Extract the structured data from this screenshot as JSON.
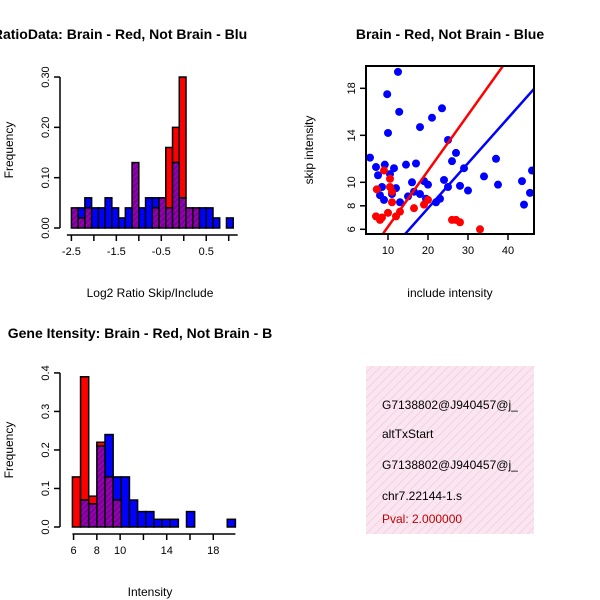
{
  "colors": {
    "brain": "#ff0000",
    "not_brain": "#0000ff",
    "overlap": "#8b008b",
    "info_bg": "#f9dfee"
  },
  "chart_data": [
    {
      "type": "bar",
      "title": "RatioData: Brain - Red, Not Brain - Blu",
      "xlabel": "Log2 Ratio Skip/Include",
      "ylabel": "Frequency",
      "xlim": [
        -2.6,
        1.2
      ],
      "ylim": [
        0,
        0.31
      ],
      "xticks": [
        -2.5,
        -1.5,
        -0.5,
        0.5
      ],
      "xtick_labels": [
        "-2.5",
        "-1.5",
        "-0.5",
        "0.5"
      ],
      "x_minor_ticks": [
        -2.0,
        -1.0,
        0.0,
        1.0
      ],
      "yticks": [
        0,
        0.1,
        0.2,
        0.3
      ],
      "ytick_labels": [
        "0.00",
        "0.10",
        "0.20",
        "0.30"
      ],
      "bin_width": 0.15,
      "bin_starts": [
        -2.5,
        -2.35,
        -2.2,
        -2.05,
        -1.9,
        -1.75,
        -1.6,
        -1.45,
        -1.3,
        -1.15,
        -1.0,
        -0.85,
        -0.7,
        -0.55,
        -0.4,
        -0.25,
        -0.1,
        0.05,
        0.2,
        0.35,
        0.5,
        0.65,
        0.8,
        0.95
      ],
      "series": [
        {
          "name": "Brain",
          "values": [
            0.04,
            0.02,
            0.04,
            0,
            0,
            0,
            0,
            0,
            0,
            0.13,
            0,
            0,
            0.04,
            0.06,
            0.16,
            0.2,
            0.3,
            0.04,
            0.04,
            0,
            0,
            0,
            0,
            0
          ]
        },
        {
          "name": "Not Brain",
          "values": [
            0.04,
            0.04,
            0.06,
            0.04,
            0.04,
            0.06,
            0.04,
            0.02,
            0.04,
            0.13,
            0.04,
            0.06,
            0.06,
            0.06,
            0.04,
            0.13,
            0.06,
            0.04,
            0.04,
            0.04,
            0.04,
            0.02,
            0,
            0.02
          ]
        }
      ]
    },
    {
      "type": "scatter",
      "title": "Brain - Red, Not Brain - Blue",
      "xlabel": "include intensity",
      "ylabel": "skip intensity",
      "xlim": [
        4.5,
        46.5
      ],
      "ylim": [
        5.6,
        19.9
      ],
      "xticks": [
        10,
        20,
        30,
        40
      ],
      "yticks": [
        6,
        8,
        10,
        14,
        18
      ],
      "series": [
        {
          "name": "Not Brain",
          "points": [
            [
              5.5,
              12.1
            ],
            [
              7,
              11.3
            ],
            [
              7.5,
              10.6
            ],
            [
              8,
              8.9
            ],
            [
              8.5,
              9.6
            ],
            [
              9,
              8.5
            ],
            [
              9.2,
              11.5
            ],
            [
              9.8,
              17.5
            ],
            [
              10,
              14.2
            ],
            [
              10.5,
              10.7
            ],
            [
              11,
              9
            ],
            [
              11.5,
              11.2
            ],
            [
              12,
              9.5
            ],
            [
              12.5,
              19.4
            ],
            [
              12.8,
              16
            ],
            [
              13,
              8.3
            ],
            [
              14.5,
              11.5
            ],
            [
              15,
              8.8
            ],
            [
              16,
              10
            ],
            [
              16.5,
              9.2
            ],
            [
              17,
              11.6
            ],
            [
              18,
              14.7
            ],
            [
              18,
              9
            ],
            [
              19,
              10.1
            ],
            [
              19.5,
              8.6
            ],
            [
              20,
              9.8
            ],
            [
              21,
              15.5
            ],
            [
              22,
              8.3
            ],
            [
              23,
              8.6
            ],
            [
              23.5,
              16.3
            ],
            [
              24,
              10.2
            ],
            [
              25,
              13.6
            ],
            [
              25,
              9.6
            ],
            [
              26,
              11.8
            ],
            [
              27,
              12.5
            ],
            [
              28,
              9.7
            ],
            [
              29,
              11.2
            ],
            [
              30,
              9.3
            ],
            [
              34,
              10.5
            ],
            [
              37,
              12
            ],
            [
              37.5,
              9.8
            ],
            [
              43.5,
              10.1
            ],
            [
              44,
              8.1
            ],
            [
              45.5,
              9.1
            ],
            [
              46,
              11
            ]
          ]
        },
        {
          "name": "Brain",
          "points": [
            [
              7,
              7.1
            ],
            [
              7.2,
              9.4
            ],
            [
              8,
              6.8
            ],
            [
              8.5,
              7
            ],
            [
              9,
              11
            ],
            [
              10,
              7.4
            ],
            [
              10.5,
              9.6
            ],
            [
              10.5,
              10.3
            ],
            [
              11,
              8.3
            ],
            [
              11,
              9.2
            ],
            [
              12,
              7.1
            ],
            [
              13,
              7.5
            ],
            [
              16.5,
              7.8
            ],
            [
              19,
              8.1
            ],
            [
              20,
              8.5
            ],
            [
              26,
              6.8
            ],
            [
              27,
              6.8
            ],
            [
              28,
              6.6
            ],
            [
              33,
              6
            ]
          ]
        }
      ],
      "fit_lines": [
        {
          "name": "Brain fit",
          "from": [
            4.5,
            3.6
          ],
          "to": [
            46.5,
            23.6
          ]
        },
        {
          "name": "Not Brain fit",
          "from": [
            4.5,
            1.85
          ],
          "to": [
            46.5,
            17.95
          ]
        }
      ]
    },
    {
      "type": "bar",
      "title": "Gene Itensity: Brain - Red, Not Brain - B",
      "xlabel": "Intensity",
      "ylabel": "Frequency",
      "xlim": [
        5.9,
        19.9
      ],
      "ylim": [
        0,
        0.405
      ],
      "xticks": [
        6,
        8,
        10,
        14,
        18
      ],
      "xtick_labels": [
        "6",
        "8",
        "10",
        "14",
        "18"
      ],
      "x_minor_ticks": [
        12,
        16
      ],
      "yticks": [
        0,
        0.1,
        0.2,
        0.3,
        0.4
      ],
      "ytick_labels": [
        "0.0",
        "0.1",
        "0.2",
        "0.3",
        "0.4"
      ],
      "bin_width": 0.7,
      "bin_starts": [
        5.9,
        6.6,
        7.3,
        8.0,
        8.7,
        9.4,
        10.1,
        10.8,
        11.5,
        12.2,
        12.9,
        13.6,
        14.3,
        15.0,
        15.7,
        16.4,
        17.1,
        17.8,
        18.5,
        19.2
      ],
      "series": [
        {
          "name": "Brain",
          "values": [
            0.13,
            0.39,
            0.08,
            0.22,
            0.13,
            0.07,
            0,
            0,
            0,
            0,
            0,
            0,
            0,
            0,
            0,
            0,
            0,
            0,
            0,
            0
          ]
        },
        {
          "name": "Not Brain",
          "values": [
            0,
            0.07,
            0.06,
            0.21,
            0.24,
            0.13,
            0.13,
            0.07,
            0.04,
            0.04,
            0.02,
            0.02,
            0.02,
            0,
            0.04,
            0,
            0,
            0,
            0,
            0.02
          ]
        }
      ]
    }
  ],
  "info_panel": {
    "lines": [
      "G7138802@J940457@j_",
      "altTxStart",
      "G7138802@J940457@j_",
      "chr7.22144-1.s"
    ],
    "pval": "Pval: 2.000000"
  }
}
